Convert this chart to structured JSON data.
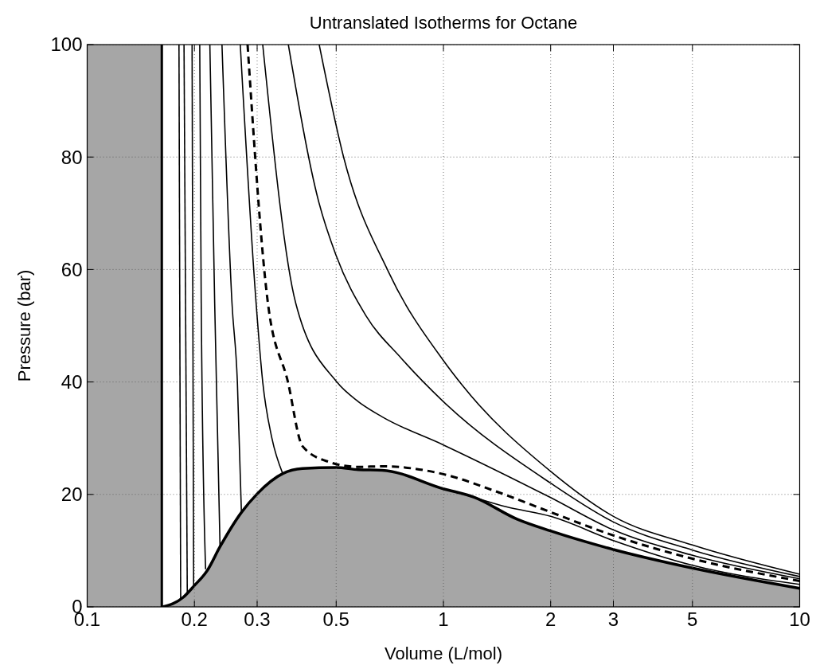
{
  "chart_data": {
    "type": "line",
    "title": "Untranslated Isotherms for Octane",
    "xlabel": "Volume (L/mol)",
    "ylabel": "Pressure (bar)",
    "log": "x",
    "grid": true,
    "xlim": [
      0.1,
      10
    ],
    "ylim": [
      0,
      100
    ],
    "xticks": [
      0.1,
      0.2,
      0.3,
      0.5,
      1,
      2,
      3,
      5,
      10
    ],
    "yticks": [
      0,
      20,
      40,
      60,
      80,
      100
    ],
    "bands": [
      {
        "axis": "x",
        "from": 0.1,
        "to": 0.162,
        "color": "#a6a6a6"
      }
    ],
    "ref_lines": [
      {
        "axis": "x",
        "value": 0.162,
        "color": "#000000"
      }
    ],
    "series": [
      {
        "type": "area",
        "color": "#a6a6a6",
        "x": [
          0.163,
          0.186,
          0.2,
          0.217,
          0.236,
          0.271,
          0.3,
          0.354,
          0.402,
          0.5,
          0.577,
          0.673,
          1.0,
          1.22,
          1.61,
          2.0,
          3.0,
          5.0,
          10
        ],
        "values": [
          0,
          1.7,
          3.8,
          6.4,
          10.7,
          16.8,
          20.1,
          23.7,
          24.6,
          24.8,
          24.4,
          24.3,
          21.0,
          19.5,
          15.6,
          13.5,
          10.2,
          6.9,
          3.3
        ]
      },
      {
        "color": "#000000",
        "x": [
          0.181,
          0.183
        ],
        "values": [
          100,
          1.3
        ]
      },
      {
        "color": "#000000",
        "x": [
          0.187,
          0.191
        ],
        "values": [
          100,
          2.2
        ]
      },
      {
        "color": "#000000",
        "x": [
          0.197,
          0.199
        ],
        "values": [
          100,
          3.4
        ]
      },
      {
        "color": "#000000",
        "x": [
          0.207,
          0.209,
          0.215
        ],
        "values": [
          100,
          54,
          6.7
        ]
      },
      {
        "color": "#000000",
        "x": [
          0.221,
          0.228,
          0.236
        ],
        "values": [
          100,
          54,
          10.7
        ]
      },
      {
        "color": "#000000",
        "x": [
          0.239,
          0.255,
          0.264,
          0.271
        ],
        "values": [
          100,
          54,
          40,
          16.8
        ]
      },
      {
        "color": "#000000",
        "x": [
          0.269,
          0.298,
          0.311,
          0.33,
          0.354
        ],
        "values": [
          100,
          54,
          40,
          30,
          23.7
        ]
      },
      {
        "color": "#000000",
        "line_style": "dashed",
        "x": [
          0.282,
          0.3215,
          0.366,
          0.402,
          0.476,
          0.577,
          0.673,
          1.0,
          1.41,
          1.99,
          2.97,
          4.98,
          10
        ],
        "values": [
          100,
          54.1,
          40,
          28.6,
          25.8,
          24.9,
          25.0,
          23.6,
          20.5,
          16.9,
          12.8,
          8.6,
          4.6
        ]
      },
      {
        "color": "#000000",
        "x": [
          0.311,
          0.385,
          0.502,
          0.577,
          0.673,
          1.0,
          1.99,
          2.97,
          4.98,
          10
        ],
        "values": [
          100,
          54,
          40,
          36.5,
          33.8,
          28.8,
          19.5,
          13.8,
          9.2,
          5.0
        ]
      },
      {
        "color": "#000000",
        "x": [
          0.367,
          0.446,
          0.499,
          0.606,
          0.762,
          1.0,
          2.0,
          3.0,
          5.0,
          10
        ],
        "values": [
          100,
          72.2,
          62.6,
          51.8,
          44.2,
          36.5,
          22.0,
          15.1,
          10.1,
          5.4
        ]
      },
      {
        "color": "#000000",
        "x": [
          0.448,
          0.526,
          0.702,
          1.0,
          1.13,
          2.0,
          3.0,
          5.0,
          10
        ],
        "values": [
          100,
          79.7,
          59.5,
          43.8,
          39.4,
          24.1,
          16.1,
          11.0,
          5.8
        ]
      },
      {
        "color": "#000000",
        "x": [
          1.1,
          1.5,
          2.0,
          3.0,
          5.0,
          10
        ],
        "values": [
          20.4,
          17.8,
          16.1,
          11.8,
          7.4,
          4.0
        ]
      }
    ]
  }
}
